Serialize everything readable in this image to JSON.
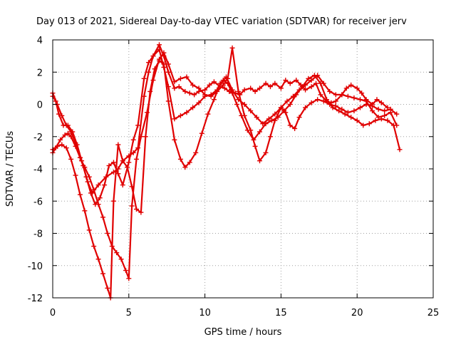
{
  "chart_data": {
    "type": "scatter",
    "title": "Day 013 of 2021, Sidereal Day-to-day VTEC variation (SDTVAR) for receiver jerv",
    "xlabel": "GPS time / hours",
    "ylabel": "SDTVAR / TECUs",
    "xlim": [
      0,
      25
    ],
    "ylim": [
      -12,
      4
    ],
    "xticks": [
      "0",
      "5",
      "10",
      "15",
      "20",
      "25"
    ],
    "yticks": [
      "4",
      "2",
      "0",
      "-2",
      "-4",
      "-6",
      "-8",
      "-10",
      "-12"
    ],
    "grid": true,
    "marker": "+",
    "color": "#e00000",
    "series": [
      {
        "name": "trace-1",
        "x": [
          0.0,
          0.2,
          0.5,
          0.8,
          1.0,
          1.2,
          1.5,
          1.8,
          2.0,
          2.3,
          2.6,
          3.0,
          3.5,
          4.0,
          4.3,
          4.6,
          5.0,
          5.3,
          5.6,
          6.0,
          6.3,
          6.6,
          7.0,
          7.3,
          7.6,
          8.0,
          8.3,
          8.7,
          9.0,
          9.3,
          9.6,
          10.0,
          10.3,
          10.6,
          11.0,
          11.3,
          11.6,
          12.0,
          12.3,
          12.6,
          13.0,
          13.3,
          13.6,
          14.0,
          14.3,
          14.6,
          15.0,
          15.3,
          15.6,
          16.0,
          16.3,
          16.6,
          17.0,
          17.3,
          17.6,
          18.0,
          18.3,
          18.6,
          19.0,
          19.3,
          19.6,
          20.0,
          20.3,
          20.6,
          21.0,
          21.3,
          21.6,
          22.0
        ],
        "y": [
          -3.0,
          -2.7,
          -2.2,
          -1.9,
          -1.8,
          -2.0,
          -2.6,
          -3.3,
          -3.8,
          -4.8,
          -5.5,
          -5.0,
          -4.5,
          -4.2,
          -4.0,
          -3.5,
          -3.2,
          -3.0,
          -2.7,
          0.5,
          2.0,
          3.0,
          3.7,
          3.0,
          2.0,
          1.0,
          1.1,
          0.8,
          0.7,
          0.6,
          0.8,
          0.9,
          1.2,
          1.4,
          1.1,
          1.0,
          0.8,
          0.7,
          0.6,
          0.9,
          1.0,
          0.8,
          1.0,
          1.3,
          1.1,
          1.3,
          1.0,
          1.5,
          1.3,
          1.5,
          1.2,
          0.9,
          1.1,
          1.3,
          0.6,
          0.2,
          0.1,
          0.2,
          0.6,
          1.0,
          1.2,
          1.0,
          0.7,
          0.3,
          0.0,
          0.3,
          0.1,
          -0.2
        ]
      },
      {
        "name": "trace-2",
        "x": [
          0.0,
          0.2,
          0.4,
          0.7,
          1.0,
          1.3,
          1.6,
          1.9,
          2.2,
          2.5,
          2.8,
          3.1,
          3.4,
          3.7,
          4.0,
          4.3,
          4.6,
          5.0,
          5.3,
          5.6,
          6.0,
          6.3,
          6.6,
          7.0,
          7.3,
          7.6,
          8.0,
          8.4,
          8.8,
          9.2,
          9.6,
          10.0,
          10.4,
          10.8,
          11.2,
          11.5,
          11.8,
          12.1,
          12.4,
          12.8,
          13.2,
          13.6,
          14.0,
          14.4,
          14.8,
          15.2,
          15.6,
          16.0,
          16.4,
          16.8,
          17.2,
          17.6,
          18.0,
          18.4,
          18.8,
          19.2,
          19.6,
          20.0,
          20.4,
          20.8,
          21.2,
          21.6,
          22.0,
          22.4,
          22.8
        ],
        "y": [
          0.5,
          0.2,
          -0.6,
          -1.3,
          -1.3,
          -1.7,
          -2.5,
          -3.5,
          -4.5,
          -5.5,
          -6.2,
          -5.8,
          -5.0,
          -3.8,
          -3.6,
          -4.3,
          -5.0,
          -3.6,
          -2.2,
          -1.3,
          1.6,
          2.6,
          3.0,
          3.4,
          2.3,
          1.1,
          -0.9,
          -0.7,
          -0.5,
          -0.2,
          0.1,
          0.5,
          0.6,
          0.9,
          1.5,
          1.3,
          0.7,
          0.0,
          -0.7,
          -1.6,
          -2.2,
          -1.7,
          -1.2,
          -1.0,
          -0.8,
          -0.4,
          0.0,
          0.6,
          1.1,
          1.6,
          1.8,
          1.3,
          0.3,
          -0.2,
          -0.4,
          -0.6,
          -0.8,
          -1.0,
          -1.3,
          -1.2,
          -1.0,
          -0.9,
          -1.0,
          -1.3,
          -2.8
        ]
      },
      {
        "name": "trace-3",
        "x": [
          0.0,
          0.3,
          0.6,
          0.9,
          1.2,
          1.5,
          1.8,
          2.1,
          2.4,
          2.7,
          3.0,
          3.3,
          3.6,
          3.9,
          4.2,
          4.5,
          4.8,
          5.0,
          5.2,
          5.5,
          5.8,
          6.2,
          6.6,
          7.0,
          7.3,
          7.6,
          8.0,
          8.4,
          8.8,
          9.2,
          9.6,
          10.0,
          10.4,
          10.8,
          11.2,
          11.5,
          11.8,
          12.2,
          12.6,
          13.0,
          13.3,
          13.6,
          14.0,
          14.3,
          14.6,
          15.0,
          15.3,
          15.6,
          15.9,
          16.2,
          16.6,
          17.0,
          17.4,
          17.8,
          18.2,
          18.6,
          19.0,
          19.4,
          19.8,
          20.2,
          20.6,
          21.0,
          21.4,
          21.8,
          22.2,
          22.6
        ],
        "y": [
          0.7,
          0.0,
          -0.7,
          -1.3,
          -1.7,
          -2.4,
          -3.3,
          -3.9,
          -4.5,
          -5.3,
          -6.2,
          -7.0,
          -8.0,
          -8.8,
          -9.2,
          -9.6,
          -10.3,
          -10.8,
          -6.3,
          -3.4,
          -2.0,
          -0.5,
          1.5,
          2.8,
          3.2,
          2.5,
          1.4,
          1.6,
          1.7,
          1.2,
          1.0,
          0.6,
          0.5,
          0.8,
          1.2,
          1.6,
          3.5,
          0.8,
          -0.7,
          -1.6,
          -2.6,
          -3.5,
          -3.0,
          -2.0,
          -1.0,
          -0.2,
          -0.5,
          -1.3,
          -1.5,
          -0.8,
          -0.2,
          0.1,
          0.3,
          0.2,
          0.0,
          -0.1,
          -0.3,
          -0.5,
          -0.4,
          -0.2,
          0.0,
          -0.1,
          -0.3,
          -0.4,
          -0.3,
          -0.6
        ]
      },
      {
        "name": "trace-4",
        "x": [
          0.0,
          0.3,
          0.6,
          0.9,
          1.2,
          1.5,
          1.8,
          2.1,
          2.4,
          2.7,
          3.0,
          3.3,
          3.6,
          3.8,
          4.0,
          4.3,
          4.6,
          4.9,
          5.2,
          5.5,
          5.8,
          6.1,
          6.4,
          6.7,
          7.0,
          7.3,
          7.6,
          8.0,
          8.4,
          8.7,
          9.0,
          9.4,
          9.8,
          10.2,
          10.6,
          11.0,
          11.4,
          11.8,
          12.2,
          12.6,
          13.0,
          13.4,
          13.8,
          14.2,
          14.6,
          15.0,
          15.4,
          15.8,
          16.2,
          16.6,
          17.0,
          17.4,
          17.8,
          18.2,
          18.6,
          19.0,
          19.4,
          19.8,
          20.2,
          20.6,
          21.0,
          21.4,
          21.8,
          22.2,
          22.6
        ],
        "y": [
          -2.8,
          -2.6,
          -2.5,
          -2.7,
          -3.4,
          -4.4,
          -5.6,
          -6.6,
          -7.8,
          -8.8,
          -9.6,
          -10.5,
          -11.4,
          -12.0,
          -6.0,
          -2.5,
          -3.5,
          -3.9,
          -5.1,
          -6.5,
          -6.7,
          -2.0,
          0.8,
          2.2,
          2.7,
          2.5,
          0.2,
          -2.2,
          -3.4,
          -3.9,
          -3.6,
          -3.0,
          -1.8,
          -0.6,
          0.3,
          1.3,
          1.7,
          0.9,
          0.3,
          0.0,
          -0.4,
          -0.8,
          -1.2,
          -0.9,
          -0.6,
          -0.2,
          0.2,
          0.5,
          0.9,
          1.2,
          1.5,
          1.8,
          1.3,
          0.8,
          0.6,
          0.6,
          0.5,
          0.4,
          0.3,
          0.2,
          -0.4,
          -0.8,
          -0.7,
          -0.5,
          -1.3
        ]
      }
    ]
  }
}
